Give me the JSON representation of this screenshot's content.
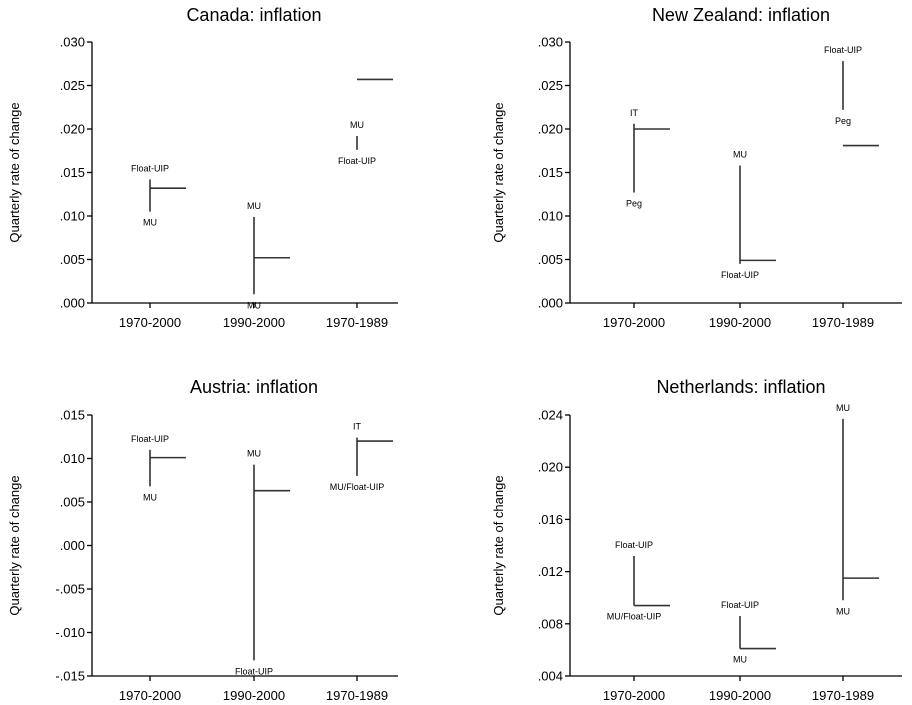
{
  "chart_data": [
    {
      "type": "range",
      "title": "Canada: inflation",
      "ylabel": "Quarterly rate of change",
      "ylim": [
        0,
        0.03
      ],
      "yticks": [
        0,
        0.005,
        0.01,
        0.015,
        0.02,
        0.025,
        0.03
      ],
      "tick_labels": [
        ".000",
        ".005",
        ".010",
        ".015",
        ".020",
        ".025",
        ".030"
      ],
      "categories": [
        "1970-2000",
        "1990-2000",
        "1970-1989"
      ],
      "groups": [
        {
          "low": 0.0105,
          "high": 0.0142,
          "actual": 0.0132,
          "top_label": "Float-UIP",
          "bottom_label": "MU"
        },
        {
          "low": 0.001,
          "high": 0.0099,
          "actual": 0.0052,
          "top_label": "MU",
          "bottom_label": "MU"
        },
        {
          "low": 0.0176,
          "high": 0.0192,
          "actual": 0.0257,
          "top_label": "MU",
          "bottom_label": "Float-UIP"
        }
      ]
    },
    {
      "type": "range",
      "title": "New Zealand: inflation",
      "ylabel": "Quarterly rate of change",
      "ylim": [
        0,
        0.03
      ],
      "yticks": [
        0,
        0.005,
        0.01,
        0.015,
        0.02,
        0.025,
        0.03
      ],
      "tick_labels": [
        ".000",
        ".005",
        ".010",
        ".015",
        ".020",
        ".025",
        ".030"
      ],
      "categories": [
        "1970-2000",
        "1990-2000",
        "1970-1989"
      ],
      "groups": [
        {
          "low": 0.0127,
          "high": 0.0206,
          "actual": 0.02,
          "top_label": "IT",
          "bottom_label": "Peg"
        },
        {
          "low": 0.0045,
          "high": 0.0158,
          "actual": 0.0049,
          "top_label": "MU",
          "bottom_label": "Float-UIP"
        },
        {
          "low": 0.0222,
          "high": 0.0278,
          "actual": 0.0181,
          "top_label": "Float-UIP",
          "bottom_label": "Peg"
        }
      ]
    },
    {
      "type": "range",
      "title": "Austria: inflation",
      "ylabel": "Quarterly rate of change",
      "ylim": [
        -0.015,
        0.015
      ],
      "yticks": [
        -0.015,
        -0.01,
        -0.005,
        0,
        0.005,
        0.01,
        0.015
      ],
      "tick_labels": [
        "-.015",
        "-.010",
        "-.005",
        ".000",
        ".005",
        ".010",
        ".015"
      ],
      "categories": [
        "1970-2000",
        "1990-2000",
        "1970-1989"
      ],
      "groups": [
        {
          "low": 0.0068,
          "high": 0.011,
          "actual": 0.0101,
          "top_label": "Float-UIP",
          "bottom_label": "MU"
        },
        {
          "low": -0.0132,
          "high": 0.0093,
          "actual": 0.0063,
          "top_label": "MU",
          "bottom_label": "Float-UIP"
        },
        {
          "low": 0.008,
          "high": 0.0124,
          "actual": 0.012,
          "top_label": "IT",
          "bottom_label": "MU/Float-UIP"
        }
      ]
    },
    {
      "type": "range",
      "title": "Netherlands: inflation",
      "ylabel": "Quarterly rate of change",
      "ylim": [
        0.004,
        0.024
      ],
      "yticks": [
        0.004,
        0.008,
        0.012,
        0.016,
        0.02,
        0.024
      ],
      "tick_labels": [
        ".004",
        ".008",
        ".012",
        ".016",
        ".020",
        ".024"
      ],
      "categories": [
        "1970-2000",
        "1990-2000",
        "1970-1989"
      ],
      "groups": [
        {
          "low": 0.0094,
          "high": 0.0132,
          "actual": 0.0094,
          "top_label": "Float-UIP",
          "bottom_label": "MU/Float-UIP"
        },
        {
          "low": 0.0061,
          "high": 0.0086,
          "actual": 0.0061,
          "top_label": "Float-UIP",
          "bottom_label": "MU"
        },
        {
          "low": 0.0098,
          "high": 0.0237,
          "actual": 0.0115,
          "top_label": "MU",
          "bottom_label": "MU"
        }
      ]
    }
  ]
}
